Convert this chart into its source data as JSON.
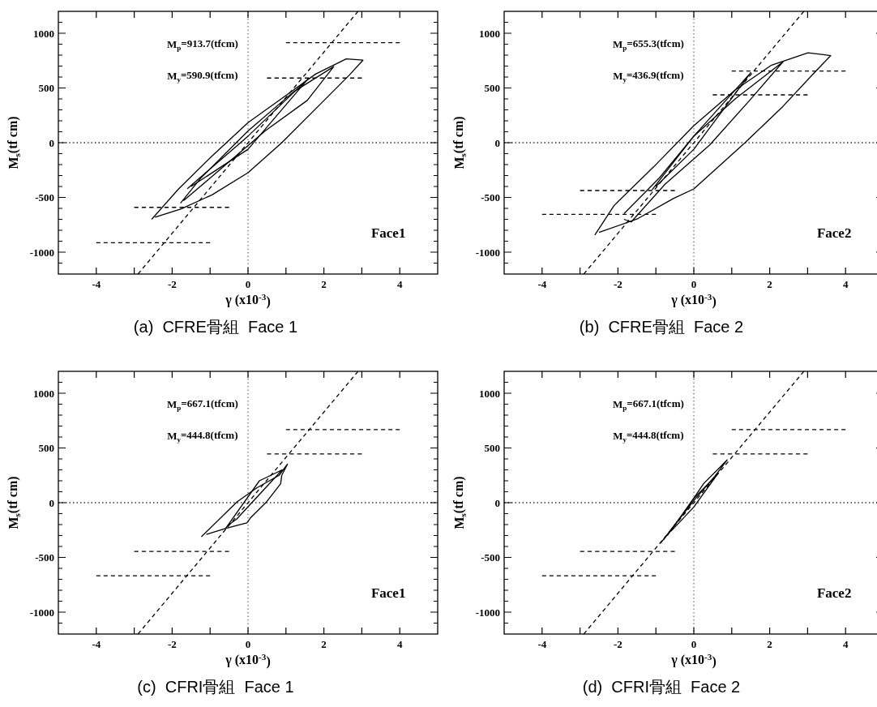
{
  "chart_data": [
    {
      "type": "line",
      "title": "(a)  CFRE骨組  Face 1",
      "xlabel": "γ (x10$^{-3}$)",
      "ylabel": "M$_{s}$(tf cm)",
      "xlim": [
        -5,
        5
      ],
      "ylim": [
        -1200,
        1200
      ],
      "xticks": [
        -4,
        {
          "value": -3,
          "label": null
        },
        -2,
        {
          "value": -1,
          "label": null
        },
        0,
        {
          "value": 1,
          "label": null
        },
        2,
        {
          "value": 3,
          "label": null
        },
        4
      ],
      "yticks": [
        {
          "value": -1100,
          "label": null
        },
        -1000,
        {
          "value": -900,
          "label": null
        },
        {
          "value": -800,
          "label": null
        },
        {
          "value": -700,
          "label": null
        },
        {
          "value": -600,
          "label": null
        },
        -500,
        {
          "value": -400,
          "label": null
        },
        {
          "value": -300,
          "label": null
        },
        {
          "value": -200,
          "label": null
        },
        {
          "value": -100,
          "label": null
        },
        0,
        {
          "value": 100,
          "label": null
        },
        {
          "value": 200,
          "label": null
        },
        {
          "value": 300,
          "label": null
        },
        {
          "value": 400,
          "label": null
        },
        500,
        {
          "value": 600,
          "label": null
        },
        {
          "value": 700,
          "label": null
        },
        {
          "value": 800,
          "label": null
        },
        {
          "value": 900,
          "label": null
        },
        1000,
        {
          "value": 1100,
          "label": null
        }
      ],
      "ref_lines": [
        {
          "axis": "x",
          "value": 0,
          "line_style": "dotted",
          "color": "#777777"
        },
        {
          "axis": "y",
          "value": 0,
          "line_style": "dotted",
          "color": "#333333"
        }
      ],
      "series": [
        {
          "color": "#000000",
          "line_style": "solid",
          "x": [
            -2.54,
            -1.84,
            -0.95,
            0,
            0.97,
            1.78,
            2.59,
            3.03,
            2.66,
            1.93,
            0.89,
            0,
            -0.95,
            -1.76,
            -2.45
          ],
          "values": [
            -700,
            -426,
            -122,
            183,
            424,
            627,
            766,
            754,
            614,
            360,
            0,
            -274,
            -477,
            -604,
            -680
          ]
        },
        {
          "color": "#000000",
          "line_style": "solid",
          "x": [
            -1.78,
            -1.25,
            0,
            1.19,
            2.26,
            1.56,
            0.45,
            -0.66,
            -1.7
          ],
          "values": [
            -553,
            -325,
            107,
            462,
            695,
            386,
            107,
            -223,
            -530
          ]
        },
        {
          "color": "#000000",
          "line_style": "solid",
          "x": [
            -1.6,
            0,
            1.6,
            0,
            -1.5
          ],
          "values": [
            -420,
            60,
            590,
            -60,
            -400
          ]
        },
        {
          "color": "#000000",
          "line_style": "dashed",
          "x": [
            -2.9,
            2.9
          ],
          "values": [
            -1200,
            1200
          ]
        },
        {
          "color": "#000000",
          "line_style": "dashed",
          "x": [
            1,
            4
          ],
          "values": [
            913.7,
            913.7
          ]
        },
        {
          "color": "#000000",
          "line_style": "dashed",
          "x": [
            -4,
            -1
          ],
          "values": [
            -913.7,
            -913.7
          ]
        },
        {
          "color": "#000000",
          "line_style": "dashed",
          "x": [
            0.5,
            3
          ],
          "values": [
            590.9,
            590.9
          ]
        },
        {
          "color": "#000000",
          "line_style": "dashed",
          "x": [
            -3,
            -0.5
          ],
          "values": [
            -590.9,
            -590.9
          ]
        }
      ],
      "annotations": [
        "M$_{p}$=913.7(tfcm)",
        "M$_{y}$=590.9(tfcm)",
        "Face1"
      ]
    },
    {
      "type": "line",
      "title": "(b)  CFRE骨組  Face 2",
      "xlabel": "γ (x10$^{-3}$)",
      "ylabel": "M$_{s}$(tf cm)",
      "xlim": [
        -5,
        5
      ],
      "ylim": [
        -1200,
        1200
      ],
      "xticks": [
        -4,
        {
          "value": -3,
          "label": null
        },
        -2,
        {
          "value": -1,
          "label": null
        },
        0,
        {
          "value": 1,
          "label": null
        },
        2,
        {
          "value": 3,
          "label": null
        },
        4
      ],
      "yticks": [
        {
          "value": -1100,
          "label": null
        },
        -1000,
        {
          "value": -900,
          "label": null
        },
        {
          "value": -800,
          "label": null
        },
        {
          "value": -700,
          "label": null
        },
        {
          "value": -600,
          "label": null
        },
        -500,
        {
          "value": -400,
          "label": null
        },
        {
          "value": -300,
          "label": null
        },
        {
          "value": -200,
          "label": null
        },
        {
          "value": -100,
          "label": null
        },
        0,
        {
          "value": 100,
          "label": null
        },
        {
          "value": 200,
          "label": null
        },
        {
          "value": 300,
          "label": null
        },
        {
          "value": 400,
          "label": null
        },
        500,
        {
          "value": 600,
          "label": null
        },
        {
          "value": 700,
          "label": null
        },
        {
          "value": 800,
          "label": null
        },
        {
          "value": 900,
          "label": null
        },
        1000,
        {
          "value": 1100,
          "label": null
        }
      ],
      "ref_lines": [
        {
          "axis": "x",
          "value": 0,
          "line_style": "dotted",
          "color": "#777777"
        },
        {
          "axis": "y",
          "value": 0,
          "line_style": "dotted",
          "color": "#333333"
        }
      ],
      "series": [
        {
          "color": "#000000",
          "line_style": "solid",
          "x": [
            -2.61,
            -2.1,
            -1.06,
            0,
            1.09,
            2.05,
            3.01,
            3.61,
            3.16,
            2.35,
            1.35,
            0,
            -0.54,
            -1.5,
            -2.5
          ],
          "values": [
            -844,
            -573,
            -221,
            156,
            482,
            709,
            822,
            796,
            633,
            332,
            0,
            -422,
            -510,
            -698,
            -820
          ]
        },
        {
          "color": "#000000",
          "line_style": "solid",
          "x": [
            -1.84,
            -0.91,
            0,
            1.09,
            2.35,
            1.46,
            0.42,
            -0.76,
            -1.65,
            -1.84
          ],
          "values": [
            -648,
            -322,
            60,
            400,
            739,
            382,
            -20,
            -380,
            -724,
            -700
          ]
        },
        {
          "color": "#000000",
          "line_style": "solid",
          "x": [
            -1.1,
            0,
            1.5,
            0,
            -1
          ],
          "values": [
            -430,
            60,
            640,
            -60,
            -400
          ]
        },
        {
          "color": "#000000",
          "line_style": "dashed",
          "x": [
            -2.9,
            2.9
          ],
          "values": [
            -1200,
            1200
          ]
        },
        {
          "color": "#000000",
          "line_style": "dashed",
          "x": [
            1,
            4
          ],
          "values": [
            655.3,
            655.3
          ]
        },
        {
          "color": "#000000",
          "line_style": "dashed",
          "x": [
            -4,
            -1
          ],
          "values": [
            -655.3,
            -655.3
          ]
        },
        {
          "color": "#000000",
          "line_style": "dashed",
          "x": [
            0.5,
            3
          ],
          "values": [
            436.9,
            436.9
          ]
        },
        {
          "color": "#000000",
          "line_style": "dashed",
          "x": [
            -3,
            -0.5
          ],
          "values": [
            -436.9,
            -436.9
          ]
        }
      ],
      "annotations": [
        "M$_{p}$=655.3(tfcm)",
        "M$_{y}$=436.9(tfcm)",
        "Face2"
      ]
    },
    {
      "type": "line",
      "title": "(c)  CFRI骨組  Face 1",
      "xlabel": "γ (x10$^{-3}$)",
      "ylabel": "M$_{s}$(tf cm)",
      "xlim": [
        -5,
        5
      ],
      "ylim": [
        -1200,
        1200
      ],
      "xticks": [
        -4,
        {
          "value": -3,
          "label": null
        },
        -2,
        {
          "value": -1,
          "label": null
        },
        0,
        {
          "value": 1,
          "label": null
        },
        2,
        {
          "value": 3,
          "label": null
        },
        4
      ],
      "yticks": [
        {
          "value": -1100,
          "label": null
        },
        -1000,
        {
          "value": -900,
          "label": null
        },
        {
          "value": -800,
          "label": null
        },
        {
          "value": -700,
          "label": null
        },
        {
          "value": -600,
          "label": null
        },
        -500,
        {
          "value": -400,
          "label": null
        },
        {
          "value": -300,
          "label": null
        },
        {
          "value": -200,
          "label": null
        },
        {
          "value": -100,
          "label": null
        },
        0,
        {
          "value": 100,
          "label": null
        },
        {
          "value": 200,
          "label": null
        },
        {
          "value": 300,
          "label": null
        },
        {
          "value": 400,
          "label": null
        },
        500,
        {
          "value": 600,
          "label": null
        },
        {
          "value": 700,
          "label": null
        },
        {
          "value": 800,
          "label": null
        },
        {
          "value": 900,
          "label": null
        },
        1000,
        {
          "value": 1100,
          "label": null
        }
      ],
      "ref_lines": [
        {
          "axis": "x",
          "value": 0,
          "line_style": "dotted",
          "color": "#777777"
        },
        {
          "axis": "y",
          "value": 0,
          "line_style": "dotted",
          "color": "#333333"
        }
      ],
      "series": [
        {
          "color": "#000000",
          "line_style": "solid",
          "x": [
            -1.23,
            -0.29,
            0.23,
            0.82,
            1.04,
            0.89,
            0.86,
            0.49,
            0.08,
            -0.03,
            -0.58,
            -1.1
          ],
          "values": [
            -311,
            8,
            135,
            250,
            352,
            250,
            173,
            8,
            -133,
            -184,
            -235,
            -290
          ]
        },
        {
          "color": "#000000",
          "line_style": "solid",
          "x": [
            -0.6,
            0.3,
            0.9,
            -0.3,
            -0.5
          ],
          "values": [
            -240,
            200,
            300,
            -150,
            -200
          ]
        },
        {
          "color": "#000000",
          "line_style": "dashed",
          "x": [
            -2.9,
            2.9
          ],
          "values": [
            -1200,
            1200
          ]
        },
        {
          "color": "#000000",
          "line_style": "dashed",
          "x": [
            1,
            4
          ],
          "values": [
            667.1,
            667.1
          ]
        },
        {
          "color": "#000000",
          "line_style": "dashed",
          "x": [
            -4,
            -1
          ],
          "values": [
            -667.1,
            -667.1
          ]
        },
        {
          "color": "#000000",
          "line_style": "dashed",
          "x": [
            0.5,
            3
          ],
          "values": [
            444.8,
            444.8
          ]
        },
        {
          "color": "#000000",
          "line_style": "dashed",
          "x": [
            -3,
            -0.5
          ],
          "values": [
            -444.8,
            -444.8
          ]
        }
      ],
      "annotations": [
        "M$_{p}$=667.1(tfcm)",
        "M$_{y}$=444.8(tfcm)",
        "Face1"
      ]
    },
    {
      "type": "line",
      "title": "(d)  CFRI骨組  Face 2",
      "xlabel": "γ (x10$^{-3}$)",
      "ylabel": "M$_{s}$(tf cm)",
      "xlim": [
        -5,
        5
      ],
      "ylim": [
        -1200,
        1200
      ],
      "xticks": [
        -4,
        {
          "value": -3,
          "label": null
        },
        -2,
        {
          "value": -1,
          "label": null
        },
        0,
        {
          "value": 1,
          "label": null
        },
        2,
        {
          "value": 3,
          "label": null
        },
        4
      ],
      "yticks": [
        {
          "value": -1100,
          "label": null
        },
        -1000,
        {
          "value": -900,
          "label": null
        },
        {
          "value": -800,
          "label": null
        },
        {
          "value": -700,
          "label": null
        },
        {
          "value": -600,
          "label": null
        },
        -500,
        {
          "value": -400,
          "label": null
        },
        {
          "value": -300,
          "label": null
        },
        {
          "value": -200,
          "label": null
        },
        {
          "value": -100,
          "label": null
        },
        0,
        {
          "value": 100,
          "label": null
        },
        {
          "value": 200,
          "label": null
        },
        {
          "value": 300,
          "label": null
        },
        {
          "value": 400,
          "label": null
        },
        500,
        {
          "value": 600,
          "label": null
        },
        {
          "value": 700,
          "label": null
        },
        {
          "value": 800,
          "label": null
        },
        {
          "value": 900,
          "label": null
        },
        1000,
        {
          "value": 1100,
          "label": null
        }
      ],
      "ref_lines": [
        {
          "axis": "x",
          "value": 0,
          "line_style": "dotted",
          "color": "#777777"
        },
        {
          "axis": "y",
          "value": 0,
          "line_style": "dotted",
          "color": "#333333"
        }
      ],
      "series": [
        {
          "color": "#000000",
          "line_style": "solid",
          "x": [
            -0.88,
            -0.26,
            0.26,
            0.88,
            0.55,
            0.04,
            -0.48,
            -0.8
          ],
          "values": [
            -371,
            -91,
            175,
            391,
            239,
            36,
            -193,
            -340
          ]
        },
        {
          "color": "#000000",
          "line_style": "solid",
          "x": [
            -0.7,
            0,
            0.6,
            0,
            -0.6
          ],
          "values": [
            -300,
            40,
            250,
            -40,
            -260
          ]
        },
        {
          "color": "#000000",
          "line_style": "dashed",
          "x": [
            -2.9,
            2.9
          ],
          "values": [
            -1200,
            1200
          ]
        },
        {
          "color": "#000000",
          "line_style": "dashed",
          "x": [
            1,
            4
          ],
          "values": [
            667.1,
            667.1
          ]
        },
        {
          "color": "#000000",
          "line_style": "dashed",
          "x": [
            -4,
            -1
          ],
          "values": [
            -667.1,
            -667.1
          ]
        },
        {
          "color": "#000000",
          "line_style": "dashed",
          "x": [
            0.5,
            3
          ],
          "values": [
            444.8,
            444.8
          ]
        },
        {
          "color": "#000000",
          "line_style": "dashed",
          "x": [
            -3,
            -0.5
          ],
          "values": [
            -444.8,
            -444.8
          ]
        }
      ],
      "annotations": [
        "M$_{p}$=667.1(tfcm)",
        "M$_{y}$=444.8(tfcm)",
        "Face2"
      ]
    }
  ]
}
